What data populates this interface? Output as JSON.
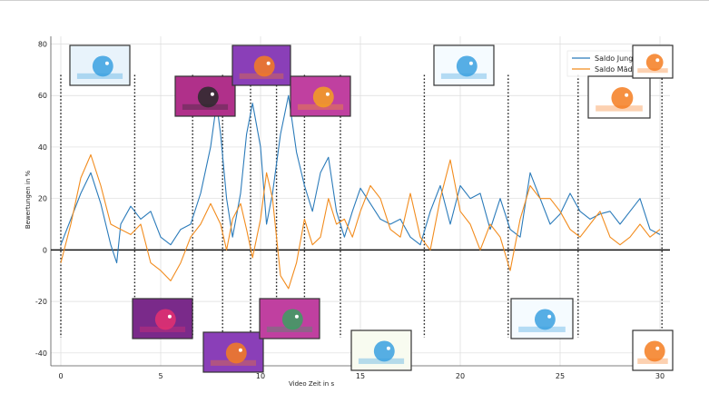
{
  "chart_data": {
    "type": "line",
    "title": "",
    "xlabel": "Video Zeit in s",
    "ylabel": "Bewertungen in %",
    "xlim": [
      -0.5,
      30.5
    ],
    "ylim": [
      -45,
      83
    ],
    "xticks": [
      "0",
      "5",
      "10",
      "15",
      "20",
      "25",
      "30"
    ],
    "xtick_values": [
      0,
      5,
      10,
      15,
      20,
      25,
      30
    ],
    "yticks": [
      "80",
      "60",
      "40",
      "20",
      "0",
      "-20",
      "-40"
    ],
    "ytick_values": [
      80,
      60,
      40,
      20,
      0,
      -20,
      -40
    ],
    "grid": true,
    "legend_position": "top-right",
    "zero_line": true,
    "scene_markers": [
      0,
      3.7,
      6.6,
      8.1,
      9.5,
      10.8,
      12.2,
      14.0,
      18.2,
      22.4,
      25.9,
      30.1
    ],
    "series": [
      {
        "name": "Saldo Junge",
        "color": "#2b7bba",
        "x": [
          0,
          0.5,
          1,
          1.5,
          2,
          2.5,
          2.8,
          3,
          3.5,
          4,
          4.5,
          5,
          5.5,
          6,
          6.5,
          7,
          7.5,
          7.8,
          8,
          8.3,
          8.6,
          9,
          9.3,
          9.6,
          10,
          10.3,
          10.6,
          11,
          11.4,
          11.8,
          12.2,
          12.6,
          13,
          13.4,
          13.8,
          14.2,
          14.6,
          15,
          15.5,
          16,
          16.5,
          17,
          17.5,
          18,
          18.5,
          19,
          19.5,
          20,
          20.5,
          21,
          21.5,
          22,
          22.5,
          23,
          23.5,
          24,
          24.5,
          25,
          25.5,
          26,
          26.5,
          27,
          27.5,
          28,
          28.5,
          29,
          29.5,
          30
        ],
        "y": [
          2,
          12,
          22,
          30,
          18,
          2,
          -5,
          10,
          17,
          12,
          15,
          5,
          2,
          8,
          10,
          22,
          40,
          57,
          45,
          20,
          5,
          22,
          45,
          57,
          40,
          10,
          22,
          45,
          60,
          38,
          25,
          15,
          30,
          36,
          15,
          5,
          15,
          24,
          18,
          12,
          10,
          12,
          5,
          2,
          15,
          25,
          10,
          25,
          20,
          22,
          8,
          20,
          8,
          5,
          30,
          20,
          10,
          14,
          22,
          15,
          12,
          14,
          15,
          10,
          15,
          20,
          8,
          6
        ]
      },
      {
        "name": "Saldo Mädchen",
        "color": "#f28c1e",
        "x": [
          0,
          0.5,
          1,
          1.5,
          2,
          2.5,
          3,
          3.5,
          4,
          4.5,
          5,
          5.5,
          6,
          6.5,
          7,
          7.5,
          8,
          8.3,
          8.6,
          9,
          9.3,
          9.6,
          10,
          10.3,
          10.6,
          11,
          11.4,
          11.8,
          12.2,
          12.6,
          13,
          13.4,
          13.8,
          14.2,
          14.6,
          15,
          15.5,
          16,
          16.5,
          17,
          17.5,
          18,
          18.5,
          19,
          19.5,
          20,
          20.5,
          21,
          21.5,
          22,
          22.5,
          23,
          23.5,
          24,
          24.5,
          25,
          25.5,
          26,
          26.5,
          27,
          27.5,
          28,
          28.5,
          29,
          29.5,
          30
        ],
        "y": [
          -5,
          10,
          28,
          37,
          25,
          10,
          8,
          6,
          10,
          -5,
          -8,
          -12,
          -5,
          5,
          10,
          18,
          10,
          0,
          12,
          18,
          8,
          -3,
          12,
          30,
          20,
          -10,
          -15,
          -5,
          12,
          2,
          5,
          20,
          10,
          12,
          5,
          15,
          25,
          20,
          8,
          5,
          22,
          5,
          0,
          20,
          35,
          15,
          10,
          0,
          10,
          5,
          -8,
          12,
          25,
          20,
          20,
          15,
          8,
          5,
          10,
          15,
          5,
          2,
          5,
          10,
          5,
          8
        ]
      }
    ]
  },
  "thumbnails": [
    {
      "id": "thumb-hammock",
      "icon": "bird-in-hammock-icon",
      "bg": "#e8f3fb",
      "accent": "#3aa0e0"
    },
    {
      "id": "thumb-dark-scene",
      "icon": "dark-creatures-scene-icon",
      "bg": "#b0308a",
      "accent": "#2a2a2a"
    },
    {
      "id": "thumb-girl-top",
      "icon": "girl-character-icon",
      "bg": "#8a3fb8",
      "accent": "#f57c20"
    },
    {
      "id": "thumb-friends",
      "icon": "two-characters-icon",
      "bg": "#c040a0",
      "accent": "#f5a020"
    },
    {
      "id": "thumb-beach",
      "icon": "bird-on-beach-chair-icon",
      "bg": "#f5fbff",
      "accent": "#3aa0e0"
    },
    {
      "id": "thumb-logo-card",
      "icon": "channel-logo-card-icon",
      "bg": "#ffffff",
      "accent": "#f57c20"
    },
    {
      "id": "thumb-logo-top",
      "icon": "channel-logo-icon",
      "bg": "#ffffff",
      "accent": "#f57c20"
    },
    {
      "id": "thumb-kinder",
      "icon": "show-title-card-icon",
      "bg": "#7a2a8a",
      "accent": "#e53070"
    },
    {
      "id": "thumb-girl-bottom",
      "icon": "girl-character-icon",
      "bg": "#8a3fb8",
      "accent": "#f57c20"
    },
    {
      "id": "thumb-group",
      "icon": "character-group-icon",
      "bg": "#c040a0",
      "accent": "#3aa060"
    },
    {
      "id": "thumb-grass",
      "icon": "bird-on-grass-icon",
      "bg": "#f8fbf0",
      "accent": "#3aa0e0"
    },
    {
      "id": "thumb-computer",
      "icon": "bird-at-desk-icon",
      "bg": "#f5fbff",
      "accent": "#3aa0e0"
    },
    {
      "id": "thumb-logo-bottom",
      "icon": "channel-logo-icon",
      "bg": "#ffffff",
      "accent": "#f57c20"
    }
  ]
}
